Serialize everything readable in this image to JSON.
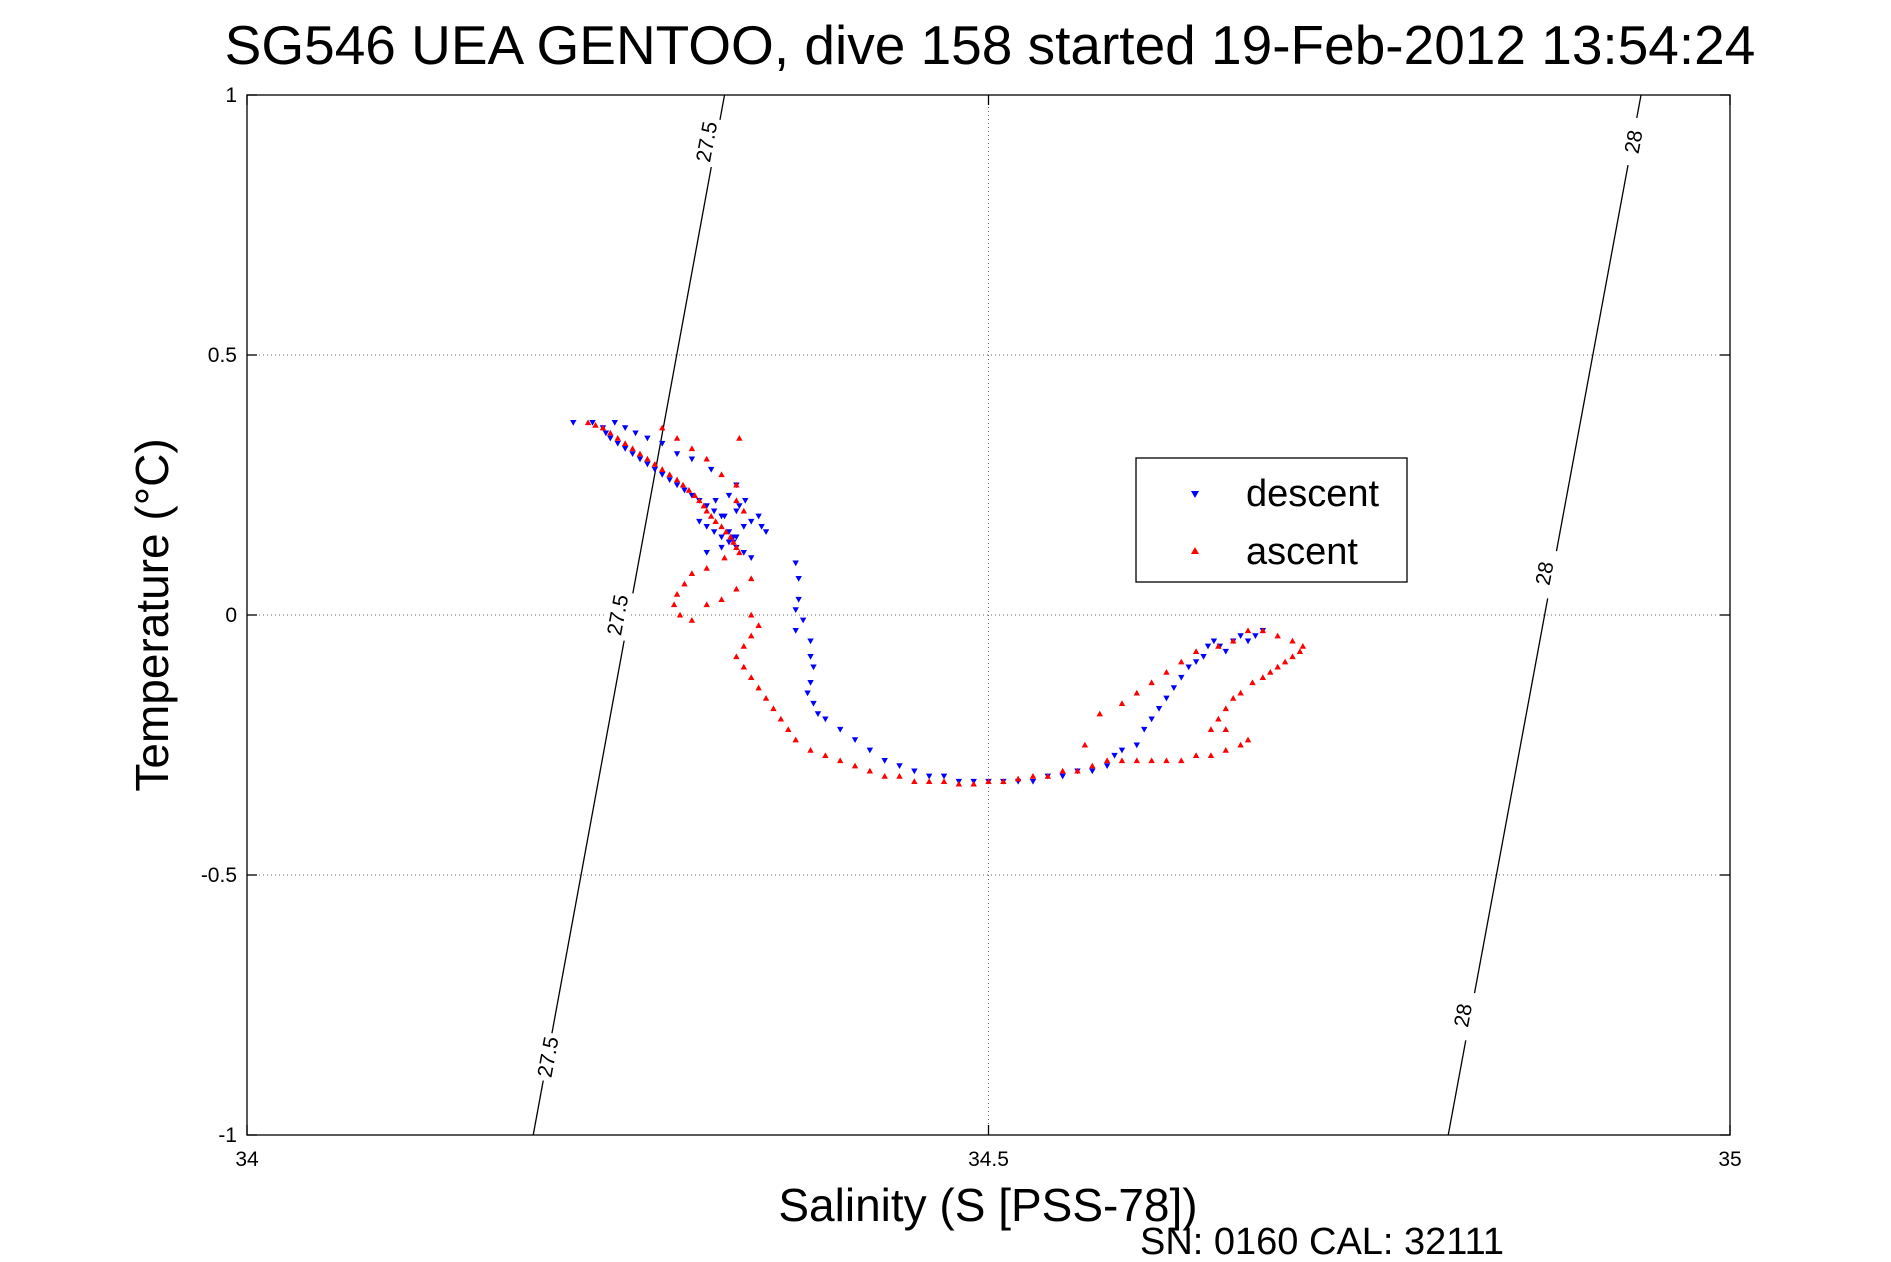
{
  "chart_data": {
    "type": "scatter",
    "title": "SG546 UEA GENTOO, dive 158 started 19-Feb-2012 13:54:24",
    "xlabel": "Salinity (S [PSS-78])",
    "ylabel": "Temperature (°C)",
    "xlim": [
      34,
      35
    ],
    "ylim": [
      -1,
      1
    ],
    "x_ticks": [
      34,
      34.5,
      35
    ],
    "x_tick_labels": [
      "34",
      "34.5",
      "35"
    ],
    "y_ticks": [
      1,
      0.5,
      0,
      -0.5,
      -1
    ],
    "y_tick_labels": [
      "1",
      "0.5",
      "0",
      "-0.5",
      "-1"
    ],
    "grid": true,
    "legend_position": "center-right",
    "footer": "SN: 0160  CAL: 32111",
    "density_contours": [
      {
        "label": "27.5",
        "points": [
          [
            34.193,
            -1.0
          ],
          [
            34.322,
            1.0
          ]
        ],
        "label_positions": [
          [
            34.203,
            -0.85
          ],
          [
            34.25,
            0.0
          ],
          [
            34.31,
            0.91
          ]
        ]
      },
      {
        "label": "28",
        "points": [
          [
            34.81,
            -1.0
          ],
          [
            34.94,
            1.0
          ]
        ],
        "label_positions": [
          [
            34.82,
            -0.77
          ],
          [
            34.875,
            0.08
          ],
          [
            34.935,
            0.91
          ]
        ]
      }
    ],
    "series": [
      {
        "name": "descent",
        "color": "#0000ff",
        "marker": "triangle-down",
        "points": [
          [
            34.22,
            0.37
          ],
          [
            34.233,
            0.37
          ],
          [
            34.24,
            0.36
          ],
          [
            34.242,
            0.35
          ],
          [
            34.245,
            0.34
          ],
          [
            34.25,
            0.33
          ],
          [
            34.255,
            0.32
          ],
          [
            34.26,
            0.31
          ],
          [
            34.265,
            0.3
          ],
          [
            34.27,
            0.29
          ],
          [
            34.275,
            0.28
          ],
          [
            34.28,
            0.27
          ],
          [
            34.285,
            0.26
          ],
          [
            34.29,
            0.25
          ],
          [
            34.295,
            0.24
          ],
          [
            34.3,
            0.23
          ],
          [
            34.305,
            0.22
          ],
          [
            34.31,
            0.21
          ],
          [
            34.315,
            0.2
          ],
          [
            34.32,
            0.19
          ],
          [
            34.305,
            0.18
          ],
          [
            34.31,
            0.17
          ],
          [
            34.315,
            0.16
          ],
          [
            34.32,
            0.15
          ],
          [
            34.325,
            0.14
          ],
          [
            34.33,
            0.13
          ],
          [
            34.335,
            0.12
          ],
          [
            34.34,
            0.11
          ],
          [
            34.31,
            0.12
          ],
          [
            34.32,
            0.13
          ],
          [
            34.328,
            0.14
          ],
          [
            34.33,
            0.15
          ],
          [
            34.325,
            0.16
          ],
          [
            34.335,
            0.17
          ],
          [
            34.34,
            0.18
          ],
          [
            34.345,
            0.19
          ],
          [
            34.33,
            0.2
          ],
          [
            34.332,
            0.21
          ],
          [
            34.336,
            0.22
          ],
          [
            34.347,
            0.17
          ],
          [
            34.35,
            0.16
          ],
          [
            34.328,
            0.15
          ],
          [
            34.322,
            0.19
          ],
          [
            34.316,
            0.22
          ],
          [
            34.325,
            0.23
          ],
          [
            34.33,
            0.25
          ],
          [
            34.313,
            0.28
          ],
          [
            34.3,
            0.3
          ],
          [
            34.29,
            0.31
          ],
          [
            34.28,
            0.33
          ],
          [
            34.27,
            0.34
          ],
          [
            34.262,
            0.35
          ],
          [
            34.255,
            0.36
          ],
          [
            34.248,
            0.37
          ],
          [
            34.37,
            0.1
          ],
          [
            34.372,
            0.07
          ],
          [
            34.372,
            0.03
          ],
          [
            34.37,
            0.01
          ],
          [
            34.375,
            -0.01
          ],
          [
            34.37,
            -0.03
          ],
          [
            34.38,
            -0.05
          ],
          [
            34.38,
            -0.08
          ],
          [
            34.382,
            -0.1
          ],
          [
            34.38,
            -0.13
          ],
          [
            34.378,
            -0.15
          ],
          [
            34.382,
            -0.17
          ],
          [
            34.385,
            -0.19
          ],
          [
            34.39,
            -0.2
          ],
          [
            34.4,
            -0.22
          ],
          [
            34.41,
            -0.24
          ],
          [
            34.42,
            -0.26
          ],
          [
            34.43,
            -0.28
          ],
          [
            34.44,
            -0.29
          ],
          [
            34.45,
            -0.3
          ],
          [
            34.46,
            -0.31
          ],
          [
            34.47,
            -0.31
          ],
          [
            34.48,
            -0.32
          ],
          [
            34.49,
            -0.32
          ],
          [
            34.5,
            -0.32
          ],
          [
            34.51,
            -0.32
          ],
          [
            34.52,
            -0.32
          ],
          [
            34.53,
            -0.32
          ],
          [
            34.54,
            -0.31
          ],
          [
            34.55,
            -0.31
          ],
          [
            34.56,
            -0.3
          ],
          [
            34.57,
            -0.3
          ],
          [
            34.58,
            -0.29
          ],
          [
            34.585,
            -0.27
          ],
          [
            34.59,
            -0.26
          ],
          [
            34.6,
            -0.25
          ],
          [
            34.605,
            -0.22
          ],
          [
            34.61,
            -0.2
          ],
          [
            34.615,
            -0.18
          ],
          [
            34.62,
            -0.16
          ],
          [
            34.625,
            -0.14
          ],
          [
            34.63,
            -0.12
          ],
          [
            34.635,
            -0.1
          ],
          [
            34.64,
            -0.09
          ],
          [
            34.645,
            -0.08
          ],
          [
            34.648,
            -0.06
          ],
          [
            34.652,
            -0.05
          ],
          [
            34.656,
            -0.06
          ],
          [
            34.66,
            -0.07
          ],
          [
            34.665,
            -0.05
          ],
          [
            34.67,
            -0.04
          ],
          [
            34.675,
            -0.05
          ],
          [
            34.68,
            -0.04
          ],
          [
            34.685,
            -0.03
          ]
        ]
      },
      {
        "name": "ascent",
        "color": "#ff0000",
        "marker": "triangle-up",
        "points": [
          [
            34.23,
            0.37
          ],
          [
            34.235,
            0.365
          ],
          [
            34.24,
            0.36
          ],
          [
            34.245,
            0.35
          ],
          [
            34.25,
            0.34
          ],
          [
            34.255,
            0.33
          ],
          [
            34.26,
            0.32
          ],
          [
            34.265,
            0.31
          ],
          [
            34.27,
            0.3
          ],
          [
            34.275,
            0.29
          ],
          [
            34.28,
            0.28
          ],
          [
            34.285,
            0.27
          ],
          [
            34.29,
            0.26
          ],
          [
            34.294,
            0.25
          ],
          [
            34.298,
            0.24
          ],
          [
            34.302,
            0.23
          ],
          [
            34.305,
            0.22
          ],
          [
            34.308,
            0.21
          ],
          [
            34.31,
            0.2
          ],
          [
            34.313,
            0.19
          ],
          [
            34.316,
            0.18
          ],
          [
            34.32,
            0.17
          ],
          [
            34.323,
            0.16
          ],
          [
            34.326,
            0.15
          ],
          [
            34.328,
            0.14
          ],
          [
            34.33,
            0.13
          ],
          [
            34.332,
            0.12
          ],
          [
            34.322,
            0.11
          ],
          [
            34.31,
            0.09
          ],
          [
            34.3,
            0.08
          ],
          [
            34.295,
            0.06
          ],
          [
            34.29,
            0.04
          ],
          [
            34.288,
            0.02
          ],
          [
            34.292,
            0.0
          ],
          [
            34.3,
            -0.01
          ],
          [
            34.31,
            0.02
          ],
          [
            34.32,
            0.03
          ],
          [
            34.33,
            0.05
          ],
          [
            34.34,
            0.07
          ],
          [
            34.332,
            0.34
          ],
          [
            34.34,
            0.0
          ],
          [
            34.345,
            -0.02
          ],
          [
            34.34,
            -0.04
          ],
          [
            34.335,
            -0.06
          ],
          [
            34.33,
            -0.08
          ],
          [
            34.335,
            -0.1
          ],
          [
            34.34,
            -0.12
          ],
          [
            34.345,
            -0.14
          ],
          [
            34.35,
            -0.16
          ],
          [
            34.355,
            -0.18
          ],
          [
            34.36,
            -0.2
          ],
          [
            34.365,
            -0.22
          ],
          [
            34.37,
            -0.24
          ],
          [
            34.38,
            -0.26
          ],
          [
            34.39,
            -0.27
          ],
          [
            34.4,
            -0.28
          ],
          [
            34.41,
            -0.29
          ],
          [
            34.42,
            -0.3
          ],
          [
            34.43,
            -0.31
          ],
          [
            34.44,
            -0.31
          ],
          [
            34.45,
            -0.32
          ],
          [
            34.46,
            -0.32
          ],
          [
            34.47,
            -0.32
          ],
          [
            34.48,
            -0.325
          ],
          [
            34.49,
            -0.325
          ],
          [
            34.5,
            -0.32
          ],
          [
            34.51,
            -0.32
          ],
          [
            34.52,
            -0.315
          ],
          [
            34.53,
            -0.31
          ],
          [
            34.54,
            -0.31
          ],
          [
            34.55,
            -0.3
          ],
          [
            34.56,
            -0.3
          ],
          [
            34.57,
            -0.29
          ],
          [
            34.58,
            -0.28
          ],
          [
            34.59,
            -0.28
          ],
          [
            34.6,
            -0.28
          ],
          [
            34.61,
            -0.28
          ],
          [
            34.62,
            -0.28
          ],
          [
            34.63,
            -0.28
          ],
          [
            34.64,
            -0.27
          ],
          [
            34.65,
            -0.27
          ],
          [
            34.66,
            -0.26
          ],
          [
            34.67,
            -0.25
          ],
          [
            34.675,
            -0.24
          ],
          [
            34.66,
            -0.22
          ],
          [
            34.65,
            -0.22
          ],
          [
            34.655,
            -0.2
          ],
          [
            34.66,
            -0.18
          ],
          [
            34.665,
            -0.16
          ],
          [
            34.67,
            -0.15
          ],
          [
            34.678,
            -0.13
          ],
          [
            34.685,
            -0.12
          ],
          [
            34.69,
            -0.11
          ],
          [
            34.695,
            -0.1
          ],
          [
            34.7,
            -0.09
          ],
          [
            34.705,
            -0.08
          ],
          [
            34.71,
            -0.07
          ],
          [
            34.712,
            -0.06
          ],
          [
            34.705,
            -0.05
          ],
          [
            34.695,
            -0.04
          ],
          [
            34.685,
            -0.03
          ],
          [
            34.675,
            -0.03
          ],
          [
            34.665,
            -0.05
          ],
          [
            34.655,
            -0.06
          ],
          [
            34.64,
            -0.07
          ],
          [
            34.63,
            -0.09
          ],
          [
            34.62,
            -0.11
          ],
          [
            34.61,
            -0.13
          ],
          [
            34.6,
            -0.15
          ],
          [
            34.59,
            -0.17
          ],
          [
            34.575,
            -0.19
          ],
          [
            34.565,
            -0.25
          ],
          [
            34.28,
            0.36
          ],
          [
            34.29,
            0.34
          ],
          [
            34.3,
            0.32
          ],
          [
            34.31,
            0.3
          ],
          [
            34.32,
            0.27
          ],
          [
            34.33,
            0.25
          ],
          [
            34.33,
            0.22
          ],
          [
            34.335,
            0.2
          ]
        ]
      }
    ]
  }
}
